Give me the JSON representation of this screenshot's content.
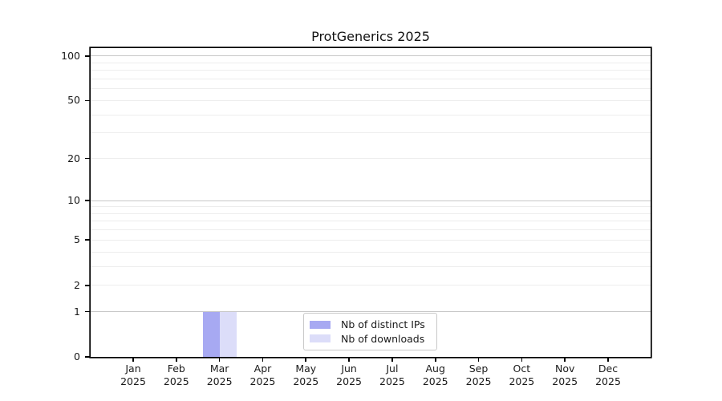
{
  "figure": {
    "background": "#ffffff",
    "axis_color": "#000000",
    "text_color": "#1a1a1a"
  },
  "chart_data": {
    "type": "bar",
    "title": "ProtGenerics 2025",
    "xlabel": "",
    "ylabel": "",
    "categories": [
      "Jan 2025",
      "Feb 2025",
      "Mar 2025",
      "Apr 2025",
      "May 2025",
      "Jun 2025",
      "Jul 2025",
      "Aug 2025",
      "Sep 2025",
      "Oct 2025",
      "Nov 2025",
      "Dec 2025"
    ],
    "series": [
      {
        "name": "Nb of distinct IPs",
        "color": "#a7a9f2",
        "values": [
          0,
          0,
          1,
          0,
          0,
          0,
          0,
          0,
          0,
          0,
          0,
          0
        ]
      },
      {
        "name": "Nb of downloads",
        "color": "#dcddf9",
        "values": [
          0,
          0,
          1,
          0,
          0,
          0,
          0,
          0,
          0,
          0,
          0,
          0
        ]
      }
    ],
    "yscale": "log1p",
    "ylim": [
      0,
      113
    ],
    "yticks": [
      0,
      1,
      2,
      5,
      10,
      20,
      50,
      100
    ],
    "grid": true,
    "gridlines": {
      "major": [
        1,
        10,
        100
      ],
      "minor": [
        2,
        3,
        4,
        5,
        6,
        7,
        8,
        9,
        20,
        30,
        40,
        50,
        60,
        70,
        80,
        90
      ],
      "major_color": "#c8c8c8",
      "minor_color": "#ededed"
    },
    "legend_position": "bottom-center"
  }
}
